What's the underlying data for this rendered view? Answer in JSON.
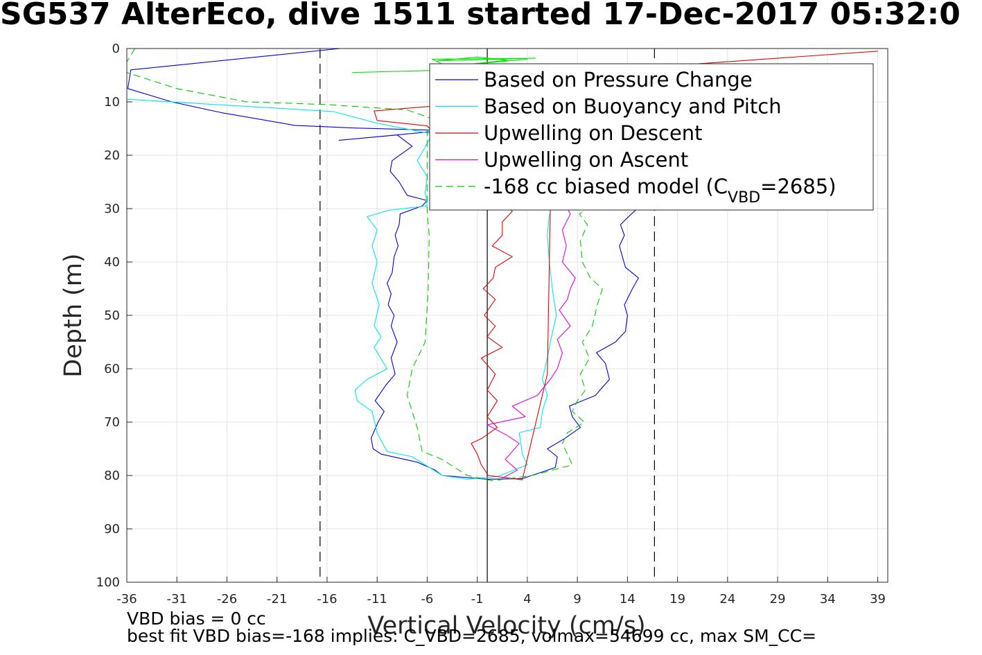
{
  "chart_data": {
    "type": "line",
    "title": "SG537 AlterEco, dive 1511 started 17-Dec-2017 05:32:0",
    "xlabel": "Vertical Velocity (cm/s)",
    "ylabel": "Depth (m)",
    "xlim": [
      -36,
      40
    ],
    "ylim": [
      0,
      100
    ],
    "y_reversed": true,
    "grid": true,
    "xticks": [
      -36,
      -31,
      -26,
      -21,
      -16,
      -11,
      -6,
      -1,
      4,
      9,
      14,
      19,
      24,
      29,
      34,
      39
    ],
    "yticks": [
      0,
      10,
      20,
      30,
      40,
      50,
      60,
      70,
      80,
      90,
      100
    ],
    "legend_position": "top-right",
    "legend": [
      {
        "text": "Based on Pressure Change",
        "color": "#0000dd",
        "dash": "solid"
      },
      {
        "text": "Based on Buoyancy and Pitch",
        "color": "#00e8e8",
        "dash": "solid"
      },
      {
        "text": "Upwelling on Descent",
        "color": "#e60000",
        "dash": "solid"
      },
      {
        "text": "Upwelling on Ascent",
        "color": "#e600e6",
        "dash": "solid"
      },
      {
        "text": "-168 cc biased model (C",
        "sub": "VBD",
        "tail": "=2685)",
        "color": "#00cc00",
        "dash": "dashed"
      }
    ],
    "reference_lines": {
      "zero_solid_x": 0.0,
      "dashed_x": [
        -16.7,
        16.7
      ]
    },
    "series": [
      {
        "name": "Based on Pressure Change",
        "color": "#0000dd",
        "points": [
          [
            -14.7,
            0
          ],
          [
            -35.6,
            4
          ],
          [
            -35.9,
            7.5
          ],
          [
            -31.5,
            10
          ],
          [
            -26.6,
            12
          ],
          [
            -19.2,
            14.4
          ],
          [
            -13.2,
            14.9
          ],
          [
            -5.5,
            15.3
          ],
          [
            -4.0,
            15.3
          ],
          [
            -14.8,
            17.2
          ],
          [
            -9.0,
            16.2
          ],
          [
            -7.5,
            18.3
          ],
          [
            -9.5,
            21.0
          ],
          [
            -9.7,
            23.0
          ],
          [
            -8.8,
            25.0
          ],
          [
            -8.0,
            27.5
          ],
          [
            -6.0,
            28.5
          ],
          [
            -6.5,
            29.5
          ],
          [
            -8.7,
            31.0
          ],
          [
            -8.8,
            33.0
          ],
          [
            -9.2,
            35.0
          ],
          [
            -8.9,
            37.0
          ],
          [
            -9.3,
            39.0
          ],
          [
            -9.5,
            42.0
          ],
          [
            -10.0,
            44.0
          ],
          [
            -9.6,
            46.0
          ],
          [
            -9.9,
            48.0
          ],
          [
            -9.3,
            50.0
          ],
          [
            -9.6,
            52.0
          ],
          [
            -9.0,
            55.0
          ],
          [
            -9.6,
            58.0
          ],
          [
            -9.2,
            61.0
          ],
          [
            -10.1,
            63.0
          ],
          [
            -11.2,
            66.0
          ],
          [
            -10.3,
            68.0
          ],
          [
            -10.9,
            70.0
          ],
          [
            -11.6,
            73.0
          ],
          [
            -11.4,
            75.0
          ],
          [
            -10.6,
            76.0
          ],
          [
            -7.0,
            77.5
          ],
          [
            -5.2,
            79.0
          ],
          [
            -4.5,
            80.0
          ],
          [
            0.0,
            80.7
          ],
          [
            3.5,
            80.6
          ],
          [
            6.8,
            78.5
          ],
          [
            7.0,
            76.5
          ],
          [
            6.0,
            75.0
          ],
          [
            7.8,
            73.0
          ],
          [
            9.3,
            71.0
          ],
          [
            8.5,
            69.0
          ],
          [
            8.2,
            67.0
          ],
          [
            10.8,
            65.0
          ],
          [
            12.2,
            62.0
          ],
          [
            11.8,
            59.0
          ],
          [
            10.9,
            57.0
          ],
          [
            12.8,
            55.0
          ],
          [
            13.8,
            53.0
          ],
          [
            14.0,
            50.0
          ],
          [
            13.7,
            48.0
          ],
          [
            14.5,
            45.0
          ],
          [
            15.1,
            43.0
          ],
          [
            13.8,
            41.0
          ],
          [
            13.5,
            39.0
          ],
          [
            13.2,
            37.0
          ],
          [
            13.7,
            35.0
          ],
          [
            13.3,
            33.0
          ],
          [
            14.4,
            31.0
          ],
          [
            15.0,
            30.0
          ]
        ]
      },
      {
        "name": "Based on Buoyancy and Pitch",
        "color": "#00e8e8",
        "points": [
          [
            -36.0,
            9.5
          ],
          [
            -15.4,
            11.8
          ],
          [
            -11.0,
            14.0
          ],
          [
            -5.5,
            16.0
          ],
          [
            -6.2,
            18.5
          ],
          [
            -7.0,
            21.0
          ],
          [
            -6.0,
            24.0
          ],
          [
            -6.2,
            27.0
          ],
          [
            -6.0,
            29.5
          ],
          [
            -9.8,
            30.3
          ],
          [
            -12.0,
            31.5
          ],
          [
            -11.0,
            34.0
          ],
          [
            -11.5,
            37.0
          ],
          [
            -11.0,
            40.0
          ],
          [
            -11.5,
            44.0
          ],
          [
            -10.8,
            48.0
          ],
          [
            -11.3,
            52.0
          ],
          [
            -10.6,
            54.0
          ],
          [
            -11.3,
            56.0
          ],
          [
            -10.0,
            60.0
          ],
          [
            -12.0,
            62.0
          ],
          [
            -13.2,
            64.0
          ],
          [
            -13.0,
            66.0
          ],
          [
            -11.5,
            68.0
          ],
          [
            -11.0,
            72.0
          ],
          [
            -10.0,
            75.5
          ],
          [
            -7.5,
            76.5
          ],
          [
            -4.5,
            80.0
          ],
          [
            -2.0,
            80.7
          ],
          [
            1.0,
            80.2
          ],
          [
            4.0,
            78.0
          ],
          [
            3.5,
            76.0
          ],
          [
            3.2,
            72.0
          ],
          [
            5.3,
            71.0
          ],
          [
            5.5,
            68.0
          ],
          [
            6.0,
            65.0
          ],
          [
            5.5,
            62.0
          ],
          [
            6.0,
            58.0
          ],
          [
            6.3,
            55.0
          ],
          [
            6.9,
            50.0
          ],
          [
            6.5,
            45.0
          ],
          [
            6.2,
            40.0
          ],
          [
            6.0,
            35.0
          ],
          [
            6.2,
            31.0
          ]
        ]
      },
      {
        "name": "Upwelling on Descent",
        "color": "#e60000",
        "points": [
          [
            39.0,
            0.5
          ],
          [
            20.0,
            3.0
          ],
          [
            11.0,
            6.0
          ],
          [
            -3.5,
            10.5
          ],
          [
            -11.3,
            11.7
          ],
          [
            -11.0,
            13.5
          ],
          [
            -6.0,
            14.5
          ],
          [
            -5.5,
            15.5
          ],
          [
            2.5,
            30.5
          ],
          [
            1.5,
            32.5
          ],
          [
            1.5,
            35.0
          ],
          [
            0.5,
            37.0
          ],
          [
            2.5,
            39.0
          ],
          [
            0.8,
            41.0
          ],
          [
            0.6,
            43.0
          ],
          [
            -0.4,
            45.0
          ],
          [
            0.8,
            47.0
          ],
          [
            -0.3,
            50.0
          ],
          [
            0.8,
            52.0
          ],
          [
            0.0,
            54.0
          ],
          [
            1.5,
            56.0
          ],
          [
            -0.6,
            58.0
          ],
          [
            0.8,
            61.0
          ],
          [
            0.0,
            64.0
          ],
          [
            1.0,
            66.0
          ],
          [
            0.0,
            69.0
          ],
          [
            1.0,
            71.0
          ],
          [
            -0.5,
            73.0
          ],
          [
            -1.6,
            74.0
          ],
          [
            -1.0,
            76.0
          ],
          [
            -0.6,
            78.0
          ],
          [
            0.1,
            80.0
          ],
          [
            3.5,
            80.8
          ],
          [
            6.0,
            61.0
          ],
          [
            6.3,
            30.0
          ]
        ]
      },
      {
        "name": "Upwelling on Ascent",
        "color": "#e600e6",
        "points": [
          [
            1.5,
            80.5
          ],
          [
            3.0,
            79.0
          ],
          [
            1.8,
            77.0
          ],
          [
            3.2,
            74.0
          ],
          [
            2.0,
            72.5
          ],
          [
            0.0,
            70.5
          ],
          [
            3.8,
            69.0
          ],
          [
            2.5,
            67.0
          ],
          [
            5.0,
            65.0
          ],
          [
            6.3,
            62.0
          ],
          [
            7.0,
            60.0
          ],
          [
            7.5,
            57.0
          ],
          [
            7.0,
            54.5
          ],
          [
            8.3,
            52.0
          ],
          [
            7.2,
            49.0
          ],
          [
            8.0,
            47.0
          ],
          [
            8.3,
            45.0
          ],
          [
            8.8,
            43.0
          ],
          [
            7.5,
            40.0
          ],
          [
            7.9,
            37.0
          ],
          [
            7.5,
            34.0
          ],
          [
            8.3,
            31.0
          ],
          [
            8.0,
            30.0
          ]
        ]
      },
      {
        "name": "-168 cc biased model (CVBD=2685)",
        "color": "#00cc00",
        "dash": "dashed",
        "points": [
          [
            -35.2,
            0
          ],
          [
            -36.0,
            2.5
          ],
          [
            -36.0,
            4.5
          ],
          [
            -31.0,
            7.5
          ],
          [
            -24.0,
            10.0
          ],
          [
            -16.0,
            10.5
          ],
          [
            -8.0,
            11.5
          ],
          [
            -5.0,
            13.5
          ],
          [
            -6.0,
            15.5
          ],
          [
            -6.0,
            30.5
          ],
          [
            -5.8,
            35.0
          ],
          [
            -5.9,
            45.0
          ],
          [
            -6.2,
            55.0
          ],
          [
            -7.5,
            60.0
          ],
          [
            -8.0,
            65.0
          ],
          [
            -7.0,
            71.0
          ],
          [
            -6.5,
            75.5
          ],
          [
            -4.5,
            77.0
          ],
          [
            -2.0,
            80.0
          ],
          [
            0.5,
            81.0
          ],
          [
            4.5,
            80.0
          ],
          [
            8.5,
            78.0
          ],
          [
            7.5,
            74.0
          ],
          [
            8.0,
            72.0
          ],
          [
            9.7,
            70.0
          ],
          [
            8.5,
            68.0
          ],
          [
            9.0,
            66.0
          ],
          [
            9.8,
            64.0
          ],
          [
            9.3,
            61.0
          ],
          [
            10.2,
            58.0
          ],
          [
            9.5,
            55.0
          ],
          [
            10.5,
            52.0
          ],
          [
            11.0,
            48.0
          ],
          [
            11.5,
            45.0
          ],
          [
            10.3,
            43.0
          ],
          [
            9.5,
            40.0
          ],
          [
            9.3,
            36.0
          ],
          [
            10.0,
            33.0
          ],
          [
            9.2,
            31.0
          ],
          [
            10.0,
            30.0
          ]
        ]
      },
      {
        "name": "surface bright green",
        "color": "#00e800",
        "points": [
          [
            -13.5,
            4.5
          ],
          [
            -3.3,
            4.0
          ],
          [
            -5.5,
            2.0
          ],
          [
            4.8,
            1.8
          ],
          [
            -5.0,
            2.3
          ],
          [
            -1.0,
            1.6
          ],
          [
            2.0,
            2.2
          ],
          [
            -3.0,
            3.2
          ],
          [
            4.0,
            2.0
          ]
        ]
      }
    ]
  },
  "footer": {
    "line1": "VBD bias = 0 cc",
    "line2": "best fit VBD bias=-168 implies: C_VBD=2685, volmax=54699 cc, max SM_CC="
  }
}
